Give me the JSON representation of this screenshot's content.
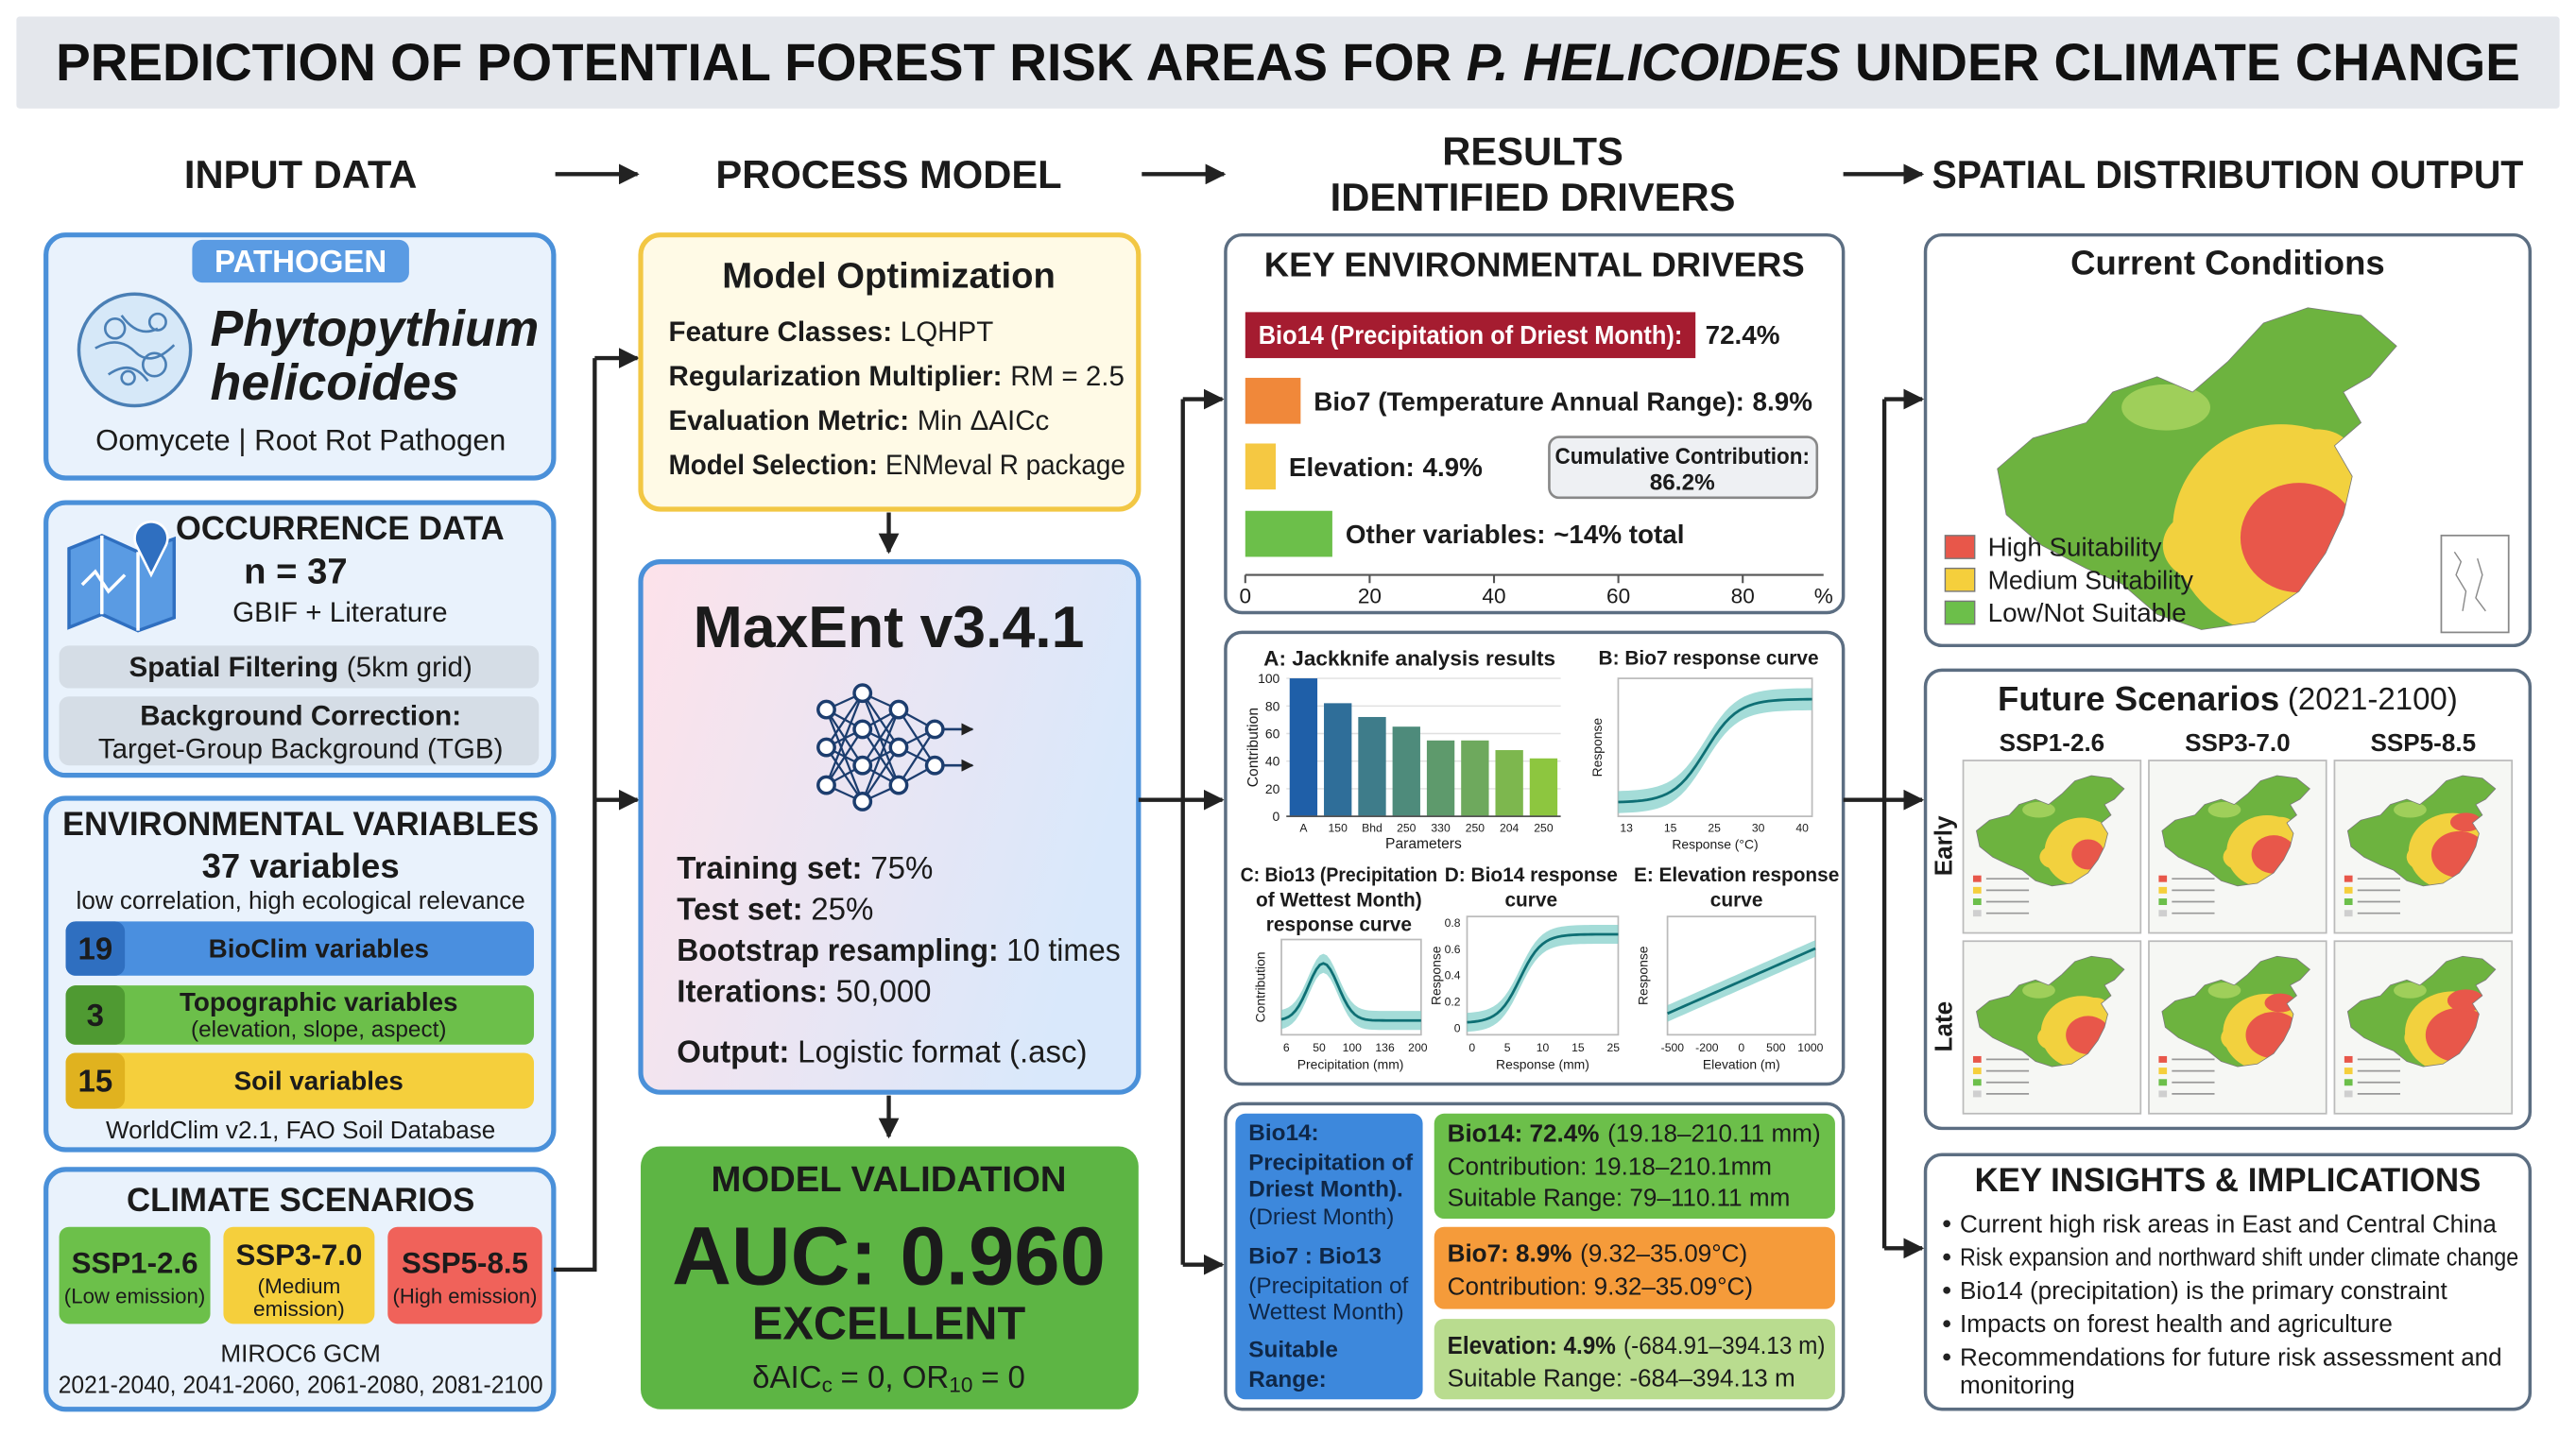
{
  "header": {
    "title": {
      "pre": "PREDICTION OF POTENTIAL FOREST RISK AREAS FOR",
      "italic": "P. HELICOIDES",
      "post": "UNDER CLIMATE CHANGE"
    }
  },
  "columns": {
    "input": "INPUT DATA",
    "process": "PROCESS MODEL",
    "results": [
      "RESULTS",
      "IDENTIFIED DRIVERS"
    ],
    "output": "SPATIAL DISTRIBUTION OUTPUT"
  },
  "pathogen": {
    "tag": "PATHOGEN",
    "name": [
      "Phytopythium",
      "helicoides"
    ],
    "description": "Oomycete | Root Rot Pathogen"
  },
  "occurrence": {
    "title": "OCCURRENCE DATA",
    "count": "n = 37",
    "source": "GBIF + Literature",
    "filtering": {
      "label": "Spatial Filtering",
      "value": "(5km grid)"
    },
    "correction": {
      "label": "Background Correction:",
      "value": "Target-Group Background (TGB)"
    }
  },
  "environment": {
    "title": "ENVIRONMENTAL VARIABLES",
    "count": "37 variables",
    "note": "low correlation, high ecological relevance",
    "groups": [
      {
        "count": "19",
        "label": [
          "BioClim variables"
        ]
      },
      {
        "count": "3",
        "label": [
          "Topographic variables",
          "(elevation, slope, aspect)"
        ]
      },
      {
        "count": "15",
        "label": [
          "Soil variables"
        ]
      }
    ],
    "source": "WorldClim v2.1, FAO Soil Database"
  },
  "climate": {
    "title": "CLIMATE SCENARIOS",
    "scenarios": [
      {
        "name": "SSP1-2.6",
        "note": [
          "(Low emission)"
        ]
      },
      {
        "name": "SSP3-7.0",
        "note": [
          "(Medium",
          "emission)"
        ]
      },
      {
        "name": "SSP5-8.5",
        "note": [
          "(High emission)"
        ]
      }
    ],
    "model": "MIROC6 GCM",
    "periods": "2021-2040, 2041-2060, 2061-2080, 2081-2100"
  },
  "optimization": {
    "title": "Model Optimization",
    "items": [
      {
        "label": "Feature Classes:",
        "value": "LQHPT"
      },
      {
        "label": "Regularization Multiplier:",
        "value": "RM = 2.5"
      },
      {
        "label": "Evaluation Metric:",
        "value": "Min ΔAICc"
      },
      {
        "label": "Model Selection:",
        "value": "ENMeval R package"
      }
    ]
  },
  "maxent": {
    "title": "MaxEnt v3.4.1",
    "items": [
      {
        "label": "Training set:",
        "value": "75%"
      },
      {
        "label": "Test set:",
        "value": "25%"
      },
      {
        "label": "Bootstrap resampling:",
        "value": "10 times"
      },
      {
        "label": "Iterations:",
        "value": "50,000"
      },
      {
        "label": "Output:",
        "value": "Logistic format (.asc)"
      }
    ]
  },
  "validation": {
    "title": "MODEL VALIDATION",
    "auc": "AUC: 0.960",
    "rating": "EXCELLENT",
    "metrics": [
      {
        "text": "δAIC"
      },
      {
        "sub": "c"
      },
      {
        "text": "= 0, OR"
      },
      {
        "sub": "10"
      },
      {
        "text": "= 0"
      }
    ]
  },
  "drivers": {
    "title": "KEY ENVIRONMENTAL DRIVERS",
    "bars": [
      {
        "name": "Bio14 (Precipitation of Driest Month):",
        "value": 72.4,
        "value_label": "72.4%"
      },
      {
        "name": "Bio7 (Temperature Annual Range):",
        "value": 8.9,
        "value_label": "8.9%"
      },
      {
        "name": "Elevation:",
        "value": 4.9,
        "value_label": "4.9%"
      },
      {
        "name": "Other variables:",
        "value": 14,
        "value_label": "~14% total"
      }
    ],
    "xlim": [
      0,
      93
    ],
    "xticks": [
      0,
      20,
      40,
      60,
      80
    ],
    "unit": "%",
    "cumulative": {
      "label": "Cumulative Contribution:",
      "value": "86.2%"
    }
  },
  "analysis": {
    "jackknife": {
      "title": "A: Jackknife analysis results",
      "ylabel": "Contribution",
      "xlabel": "Parameters",
      "ylim": [
        0,
        100
      ],
      "yticks": [
        0,
        20,
        40,
        60,
        80,
        100
      ],
      "categories": [
        "A",
        "150",
        "Bhd",
        "250",
        "330",
        "250",
        "204",
        "250"
      ],
      "values": [
        100,
        82,
        72,
        65,
        55,
        55,
        48,
        42
      ]
    },
    "bio7": {
      "title": [
        "B: Bio7 response curve"
      ],
      "ylabel": "Response",
      "xlabel": "Response (°C)",
      "xticks": [
        "13",
        "15",
        "25",
        "30",
        "40"
      ]
    },
    "bio13": {
      "title": [
        "C: Bio13 (Precipitation",
        "of Wettest Month)",
        "response curve"
      ],
      "ylabel": "Contribution",
      "xlabel": "Precipitation (mm)",
      "xticks": [
        "6",
        "50",
        "100",
        "136",
        "200"
      ]
    },
    "bio14": {
      "title": [
        "D: Bio14 response",
        "curve"
      ],
      "ylabel": "Response",
      "xlabel": "Response (mm)",
      "xticks": [
        "0",
        "5",
        "10",
        "15",
        "25"
      ],
      "yticks": [
        "0.8",
        "0.6",
        "0.4",
        "0.2",
        "0"
      ]
    },
    "elevation": {
      "title": [
        "E: Elevation response",
        "curve"
      ],
      "ylabel": "Response",
      "xlabel": "Elevation (m)",
      "xticks": [
        "-500",
        "-200",
        "0",
        "500",
        "1000"
      ]
    }
  },
  "table": {
    "left": {
      "bio14": [
        "Bio14:",
        "Precipitation of",
        "Driest Month)."
      ],
      "bio14_note": "(Driest Month)",
      "bio7": "Bio7 : Bio13",
      "bio7_note": [
        "(Precipitation of",
        "Wettest Month)"
      ],
      "range": [
        "Suitable",
        "Range:"
      ]
    },
    "rows": [
      {
        "head": "Bio14: 72.4%",
        "range": "(19.18–210.11 mm)",
        "lines": [
          "Contribution: 19.18–210.1mm",
          "Suitable Range: 79–110.11 mm"
        ]
      },
      {
        "head": "Bio7: 8.9%",
        "range": "(9.32–35.09°C)",
        "lines": [
          "Contribution: 9.32–35.09°C)"
        ]
      },
      {
        "head": "Elevation: 4.9%",
        "range": "(-684.91–394.13 m)",
        "lines": [
          "Suitable Range: -684–394.13 m"
        ]
      }
    ]
  },
  "current": {
    "title": "Current Conditions",
    "legend": [
      "High Suitability",
      "Medium Suitability",
      "Low/Not Suitable"
    ]
  },
  "future": {
    "title": "Future Scenarios",
    "period": "(2021-2100)",
    "scenarios": [
      "SSP1-2.6",
      "SSP3-7.0",
      "SSP5-8.5"
    ],
    "periods": [
      "Early",
      "Late"
    ]
  },
  "insights": {
    "title": "KEY INSIGHTS & IMPLICATIONS",
    "items": [
      [
        "Current high risk areas in East and Central China"
      ],
      [
        "Risk expansion and northward shift under climate change"
      ],
      [
        "Bio14 (precipitation) is the primary constraint"
      ],
      [
        "Impacts on forest health and agriculture"
      ],
      [
        "Recommendations for future risk assessment and",
        "monitoring"
      ]
    ]
  }
}
